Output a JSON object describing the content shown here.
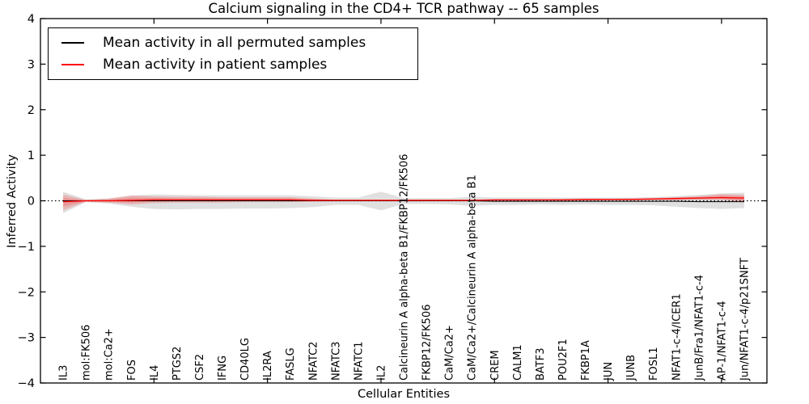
{
  "chart_data": {
    "type": "line",
    "title": "Calcium signaling in the CD4+ TCR pathway -- 65 samples",
    "xlabel": "Cellular Entities",
    "ylabel": "Inferred Activity",
    "ylim": [
      -4,
      4
    ],
    "xlim": [
      0,
      32
    ],
    "yticks": [
      4,
      3,
      2,
      1,
      0,
      -1,
      -2,
      -3,
      -4
    ],
    "xtick_positions": [
      5,
      10,
      15,
      20,
      25,
      30
    ],
    "grid": false,
    "legend_position": "upper left",
    "zero_reference_value": 0,
    "categories": [
      "IL3",
      "mol:FK506",
      "mol:Ca2+",
      "FOS",
      "IL4",
      "PTGS2",
      "CSF2",
      "IFNG",
      "CD40LG",
      "IL2RA",
      "FASLG",
      "NFATC2",
      "NFATC3",
      "NFATC1",
      "IL2",
      "Calcineurin A alpha-beta B1/FKBP12/FK506",
      "FKBP12/FK506",
      "CaM/Ca2+",
      "CaM/Ca2+/Calcineurin A alpha-beta B1",
      "CREM",
      "CALM1",
      "BATF3",
      "POU2F1",
      "FKBP1A",
      "JUN",
      "JUNB",
      "FOSL1",
      "NFAT1-c-4/ICER1",
      "JunB/Fra1/NFAT1-c-4",
      "AP-1/NFAT1-c-4",
      "Jun/NFAT1-c-4/p21SNFT"
    ],
    "series": [
      {
        "name": "Mean activity in all permuted samples",
        "color": "#000000",
        "band_color": "rgba(0,0,0,0.12)",
        "values": [
          0,
          0,
          0,
          0,
          0,
          0,
          0,
          0,
          0,
          0,
          0,
          0,
          0,
          0,
          0,
          0,
          0,
          0,
          0,
          -0.01,
          -0.01,
          -0.01,
          -0.01,
          -0.01,
          -0.01,
          -0.01,
          -0.01,
          -0.01,
          -0.02,
          -0.02,
          -0.02
        ],
        "band_upper": [
          0.2,
          0.03,
          0.05,
          0.11,
          0.14,
          0.13,
          0.12,
          0.12,
          0.12,
          0.12,
          0.12,
          0.1,
          0.07,
          0.07,
          0.2,
          0.06,
          0.06,
          0.06,
          0.09,
          0.07,
          0.07,
          0.07,
          0.07,
          0.07,
          0.07,
          0.07,
          0.08,
          0.1,
          0.13,
          0.16,
          0.18
        ],
        "band_lower": [
          -0.27,
          -0.03,
          -0.06,
          -0.13,
          -0.18,
          -0.19,
          -0.18,
          -0.18,
          -0.17,
          -0.17,
          -0.16,
          -0.14,
          -0.09,
          -0.09,
          -0.21,
          -0.07,
          -0.07,
          -0.08,
          -0.11,
          -0.09,
          -0.09,
          -0.08,
          -0.09,
          -0.08,
          -0.09,
          -0.09,
          -0.1,
          -0.13,
          -0.16,
          -0.18,
          -0.16
        ]
      },
      {
        "name": "Mean activity in patient samples",
        "color": "#ff0000",
        "band_color": "rgba(255,0,0,0.18)",
        "values": [
          -0.02,
          0,
          0,
          0.01,
          0.02,
          0.02,
          0.02,
          0.02,
          0.02,
          0.02,
          0.02,
          0.01,
          0.01,
          0.01,
          0.01,
          0.01,
          0.01,
          0.01,
          0.01,
          0.02,
          0.02,
          0.02,
          0.02,
          0.03,
          0.03,
          0.03,
          0.04,
          0.05,
          0.06,
          0.07,
          0.06
        ],
        "band_upper": [
          0.14,
          0.02,
          0.05,
          0.12,
          0.1,
          0.09,
          0.09,
          0.08,
          0.08,
          0.08,
          0.08,
          0.05,
          0.02,
          0.02,
          0.02,
          0.02,
          0.02,
          0.02,
          0.02,
          0.03,
          0.03,
          0.03,
          0.04,
          0.04,
          0.04,
          0.05,
          0.06,
          0.08,
          0.1,
          0.15,
          0.13
        ],
        "band_lower": [
          -0.21,
          -0.02,
          -0.04,
          -0.08,
          -0.05,
          -0.04,
          -0.04,
          -0.04,
          -0.03,
          -0.03,
          -0.03,
          -0.02,
          -0.01,
          -0.01,
          -0.01,
          -0.01,
          -0.01,
          -0.01,
          -0.01,
          -0.01,
          -0.01,
          0,
          0,
          0,
          0.01,
          0.01,
          0.01,
          0.01,
          0.02,
          0.02,
          -0.04
        ]
      }
    ]
  }
}
